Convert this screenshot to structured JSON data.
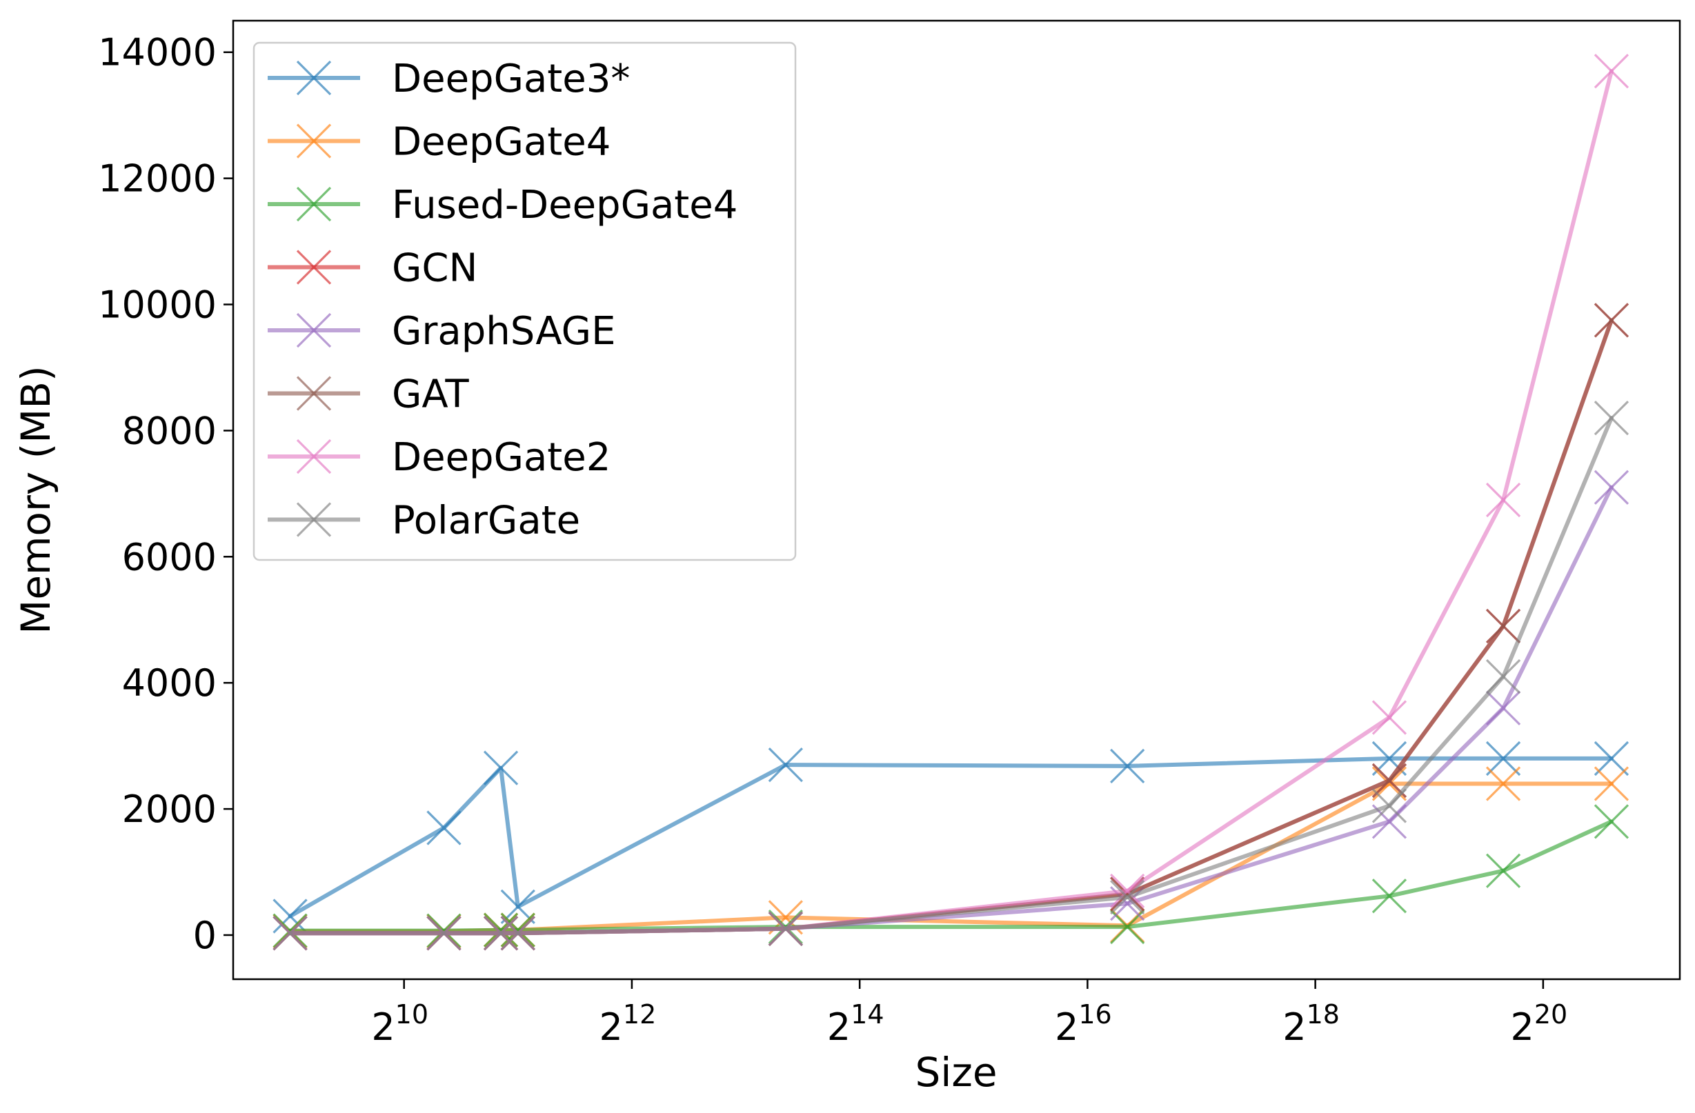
{
  "chart_data": {
    "type": "line",
    "title": "",
    "xlabel": "Size",
    "ylabel": "Memory (MB)",
    "xscale": "log2",
    "xlim_log2": [
      8.5,
      21.2
    ],
    "ylim": [
      -700,
      14500
    ],
    "xticks": [
      {
        "base": "2",
        "exp": "10",
        "log2": 10
      },
      {
        "base": "2",
        "exp": "12",
        "log2": 12
      },
      {
        "base": "2",
        "exp": "14",
        "log2": 14
      },
      {
        "base": "2",
        "exp": "16",
        "log2": 16
      },
      {
        "base": "2",
        "exp": "18",
        "log2": 18
      },
      {
        "base": "2",
        "exp": "20",
        "log2": 20
      }
    ],
    "yticks": [
      0,
      2000,
      4000,
      6000,
      8000,
      10000,
      12000,
      14000
    ],
    "grid": false,
    "legend_position": "top-left",
    "series": [
      {
        "name": "DeepGate3*",
        "color": "#1f77b4",
        "x_log2": [
          9.0,
          10.35,
          10.85,
          11.0,
          13.35,
          16.35,
          18.65,
          19.65,
          20.6
        ],
        "values": [
          300,
          1700,
          2650,
          450,
          2700,
          2680,
          2800,
          2800,
          2800
        ]
      },
      {
        "name": "DeepGate4",
        "color": "#ff7f0e",
        "x_log2": [
          9.0,
          10.35,
          10.85,
          11.0,
          13.35,
          16.35,
          18.65,
          19.65,
          20.6
        ],
        "values": [
          60,
          60,
          80,
          80,
          280,
          150,
          2400,
          2400,
          2400
        ]
      },
      {
        "name": "Fused-DeepGate4",
        "color": "#2ca02c",
        "x_log2": [
          9.0,
          10.35,
          10.85,
          11.0,
          13.35,
          16.35,
          18.65,
          19.65,
          20.6
        ],
        "values": [
          70,
          70,
          80,
          80,
          130,
          130,
          620,
          1020,
          1800
        ]
      },
      {
        "name": "GCN",
        "color": "#d62728",
        "x_log2": [
          9.0,
          10.35,
          10.85,
          11.0,
          13.35,
          16.35,
          18.65,
          19.65,
          20.6
        ],
        "values": [
          30,
          30,
          30,
          30,
          100,
          650,
          2450,
          4900,
          9750
        ]
      },
      {
        "name": "GraphSAGE",
        "color": "#9467bd",
        "x_log2": [
          9.0,
          10.35,
          10.85,
          11.0,
          13.35,
          16.35,
          18.65,
          19.65,
          20.6
        ],
        "values": [
          30,
          30,
          30,
          30,
          100,
          500,
          1800,
          3600,
          7100
        ]
      },
      {
        "name": "GAT",
        "color": "#8c564b",
        "x_log2": [
          9.0,
          10.35,
          10.85,
          11.0,
          13.35,
          16.35,
          18.65,
          19.65,
          20.6
        ],
        "values": [
          30,
          30,
          30,
          30,
          100,
          650,
          2450,
          4900,
          9750
        ]
      },
      {
        "name": "DeepGate2",
        "color": "#e377c2",
        "x_log2": [
          9.0,
          10.35,
          10.85,
          11.0,
          13.35,
          16.35,
          18.65,
          19.65,
          20.6
        ],
        "values": [
          30,
          30,
          30,
          30,
          100,
          700,
          3450,
          6900,
          13700
        ]
      },
      {
        "name": "PolarGate",
        "color": "#7f7f7f",
        "x_log2": [
          9.0,
          10.35,
          10.85,
          11.0,
          13.35,
          16.35,
          18.65,
          19.65,
          20.6
        ],
        "values": [
          30,
          30,
          30,
          30,
          100,
          600,
          2050,
          4100,
          8200
        ]
      }
    ]
  }
}
